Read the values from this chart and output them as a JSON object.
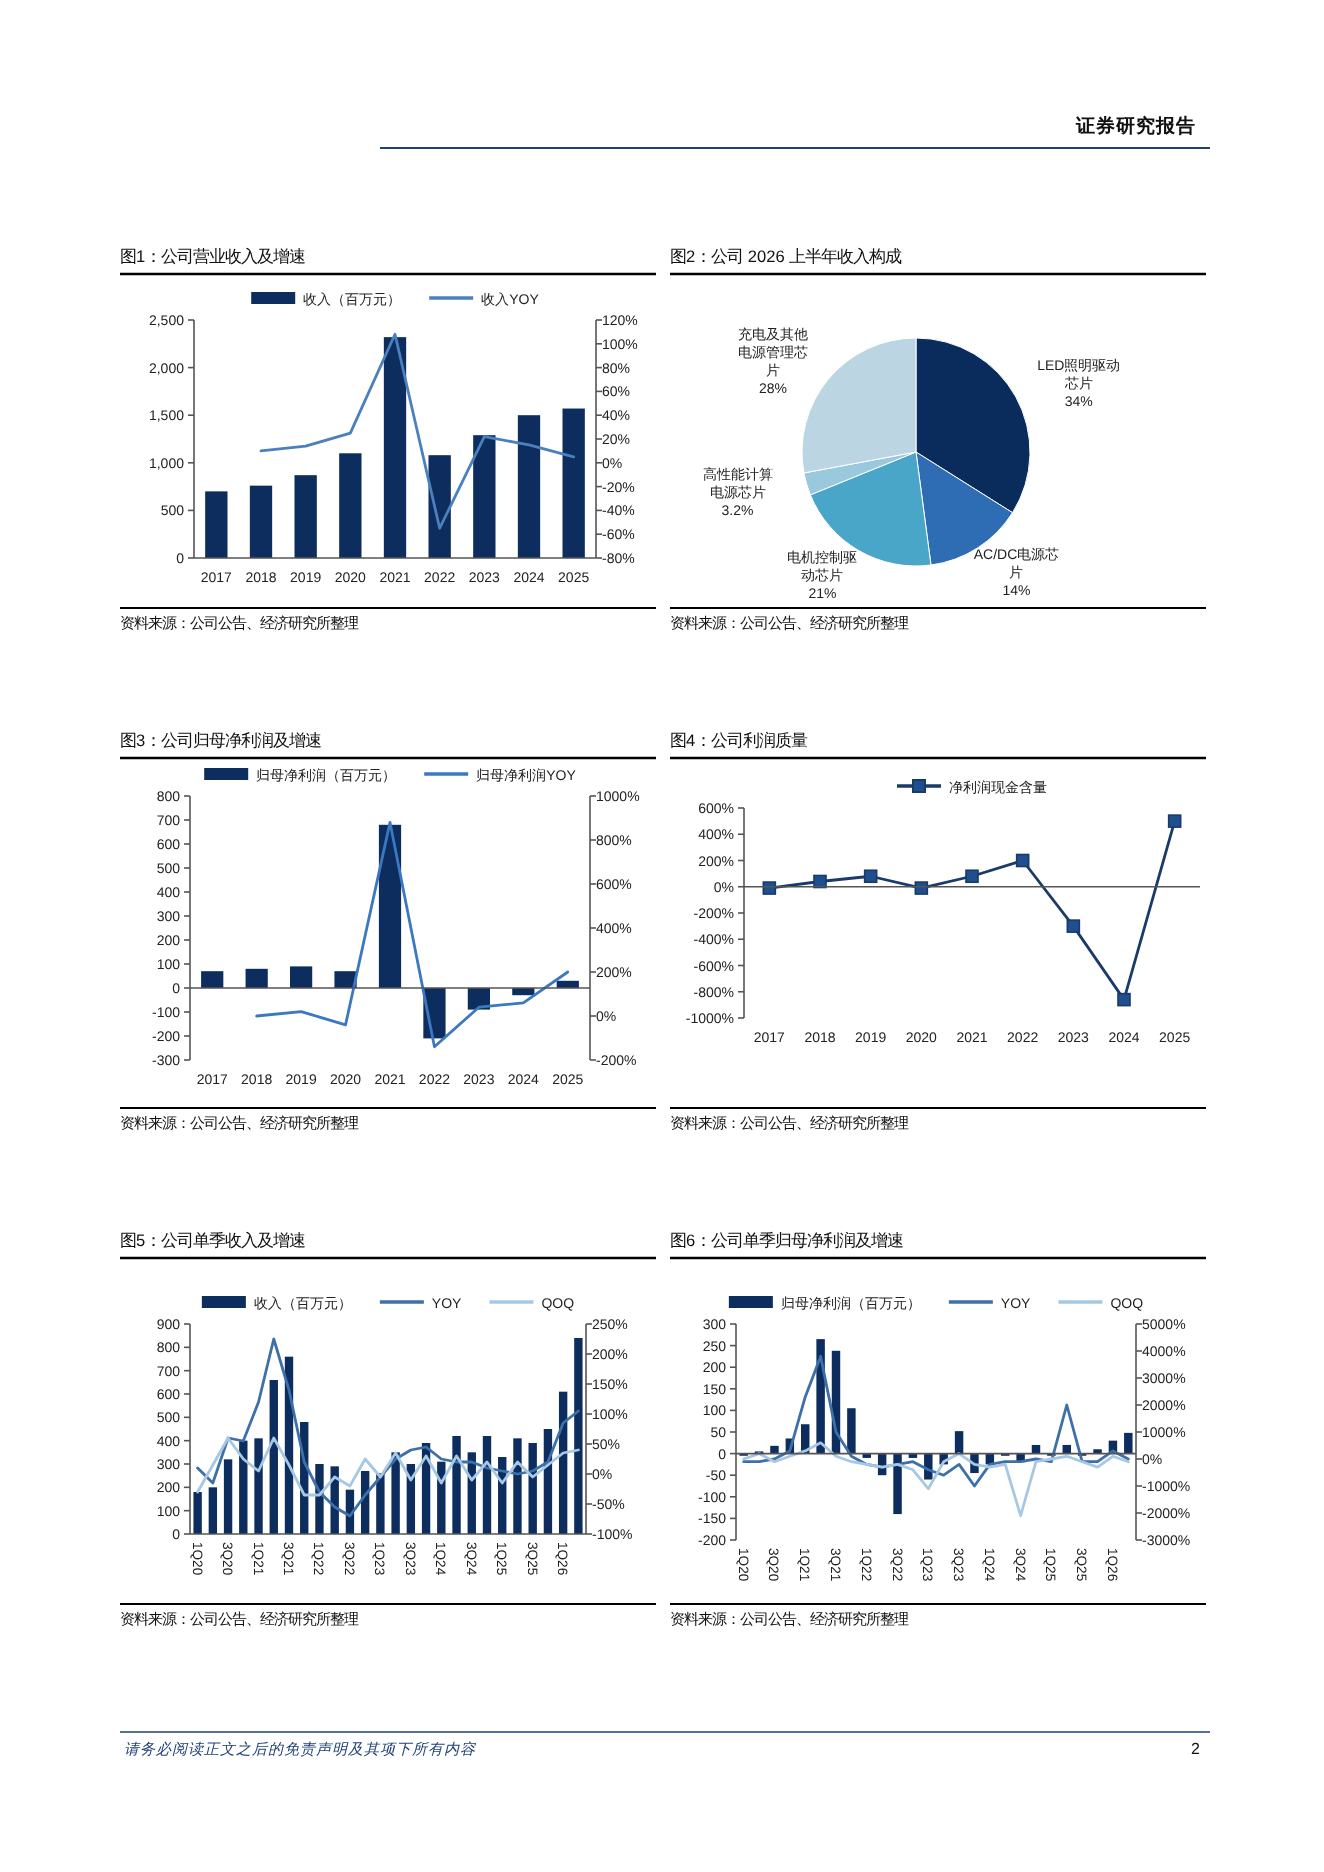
{
  "chart_data": [
    {
      "type": "other",
      "annotations": [
        "证券研究报告",
        "请务必阅读正文之后的免责声明及其项下所有内容",
        "2"
      ]
    },
    {
      "type": "bar",
      "title": "图1：公司营业收入及增速",
      "categories": [
        "2017",
        "2018",
        "2019",
        "2020",
        "2021",
        "2022",
        "2023",
        "2024",
        "2025"
      ],
      "series": [
        {
          "name": "收入（百万元）",
          "type": "bar",
          "color": "#0c2d5e",
          "values": [
            700,
            760,
            870,
            1100,
            2320,
            1080,
            1290,
            1500,
            1570
          ]
        },
        {
          "name": "收入YOY",
          "type": "line",
          "axis": "y2",
          "color": "#4a80bd",
          "values": [
            null,
            10,
            14,
            25,
            108,
            -55,
            22,
            15,
            5
          ]
        }
      ],
      "ylim": [
        0,
        2500
      ],
      "yticks": [
        0,
        500,
        {
          "value": 1000,
          "label": "1,000"
        },
        {
          "value": 1500,
          "label": "1,500"
        },
        {
          "value": 2000,
          "label": "2,000"
        },
        {
          "value": 2500,
          "label": "2,500"
        }
      ],
      "y2lim": [
        -80,
        120
      ],
      "y2ticks": [
        {
          "value": -80,
          "label": "-80%"
        },
        {
          "value": -60,
          "label": "-60%"
        },
        {
          "value": -40,
          "label": "-40%"
        },
        {
          "value": -20,
          "label": "-20%"
        },
        {
          "value": 0,
          "label": "0%"
        },
        {
          "value": 20,
          "label": "20%"
        },
        {
          "value": 40,
          "label": "40%"
        },
        {
          "value": 60,
          "label": "60%"
        },
        {
          "value": 80,
          "label": "80%"
        },
        {
          "value": 100,
          "label": "100%"
        },
        {
          "value": 120,
          "label": "120%"
        }
      ],
      "legend": "top",
      "annotations": [
        "资料来源：公司公告、经济研究所整理"
      ]
    },
    {
      "type": "pie",
      "title": "图2：公司 2026 上半年收入构成",
      "categories": [
        "LED照明驱动芯片",
        "AC/DC电源芯片",
        "电机控制驱动芯片",
        "高性能计算电源芯片",
        "充电及其他电源管理芯片"
      ],
      "values": [
        34,
        14,
        21,
        3.2,
        28
      ],
      "colors": [
        "#0a2c5c",
        "#2e6db4",
        "#4aa6c9",
        "#9ac8dc",
        "#bcd5e3"
      ],
      "value_labels": [
        "34%",
        "14%",
        "21%",
        "3.2%",
        "28%"
      ],
      "annotations": [
        "资料来源：公司公告、经济研究所整理"
      ]
    },
    {
      "type": "bar",
      "title": "图3：公司归母净利润及增速",
      "categories": [
        "2017",
        "2018",
        "2019",
        "2020",
        "2021",
        "2022",
        "2023",
        "2024",
        "2025"
      ],
      "series": [
        {
          "name": "归母净利润（百万元）",
          "type": "bar",
          "color": "#0c2d5e",
          "values": [
            70,
            80,
            90,
            70,
            680,
            -210,
            -90,
            -30,
            30
          ]
        },
        {
          "name": "归母净利润YOY",
          "type": "line",
          "axis": "y2",
          "color": "#3c78c0",
          "values": [
            null,
            0,
            20,
            -40,
            880,
            -140,
            40,
            60,
            200
          ]
        }
      ],
      "ylim": [
        -300,
        800
      ],
      "yticks": [
        -300,
        -200,
        -100,
        0,
        100,
        200,
        300,
        400,
        500,
        600,
        700,
        800
      ],
      "y2lim": [
        -200,
        1000
      ],
      "y2ticks": [
        {
          "value": -200,
          "label": "-200%"
        },
        {
          "value": 0,
          "label": "0%"
        },
        {
          "value": 200,
          "label": "200%"
        },
        {
          "value": 400,
          "label": "400%"
        },
        {
          "value": 600,
          "label": "600%"
        },
        {
          "value": 800,
          "label": "800%"
        },
        {
          "value": 1000,
          "label": "1000%"
        }
      ],
      "legend": "top",
      "annotations": [
        "资料来源：公司公告、经济研究所整理"
      ]
    },
    {
      "type": "line",
      "title": "图4：公司利润质量",
      "categories": [
        "2017",
        "2018",
        "2019",
        "2020",
        "2021",
        "2022",
        "2023",
        "2024",
        "2025"
      ],
      "series": [
        {
          "name": "净利润现金含量",
          "color": "#1a3a6b",
          "values": [
            -10,
            40,
            80,
            -10,
            80,
            200,
            -300,
            -860,
            500
          ]
        }
      ],
      "ylim": [
        -1000,
        600
      ],
      "yticks": [
        {
          "value": -1000,
          "label": "-1000%"
        },
        {
          "value": -800,
          "label": "-800%"
        },
        {
          "value": -600,
          "label": "-600%"
        },
        {
          "value": -400,
          "label": "-400%"
        },
        {
          "value": -200,
          "label": "-200%"
        },
        {
          "value": 0,
          "label": "0%"
        },
        {
          "value": 200,
          "label": "200%"
        },
        {
          "value": 400,
          "label": "400%"
        },
        {
          "value": 600,
          "label": "600%"
        }
      ],
      "marker": "square",
      "legend": "top",
      "annotations": [
        "资料来源：公司公告、经济研究所整理"
      ]
    },
    {
      "type": "bar",
      "title": "图5：公司单季收入及增速",
      "categories": [
        "1Q20",
        null,
        "3Q20",
        null,
        "1Q21",
        null,
        "3Q21",
        null,
        "1Q22",
        null,
        "3Q22",
        null,
        "1Q23",
        null,
        "3Q23",
        null,
        "1Q24",
        null,
        "3Q24",
        null,
        "1Q25",
        null,
        "3Q25",
        null,
        "1Q26",
        null
      ],
      "series": [
        {
          "name": "收入（百万元）",
          "type": "bar",
          "color": "#0c2d5e",
          "values": [
            180,
            200,
            320,
            400,
            410,
            660,
            760,
            480,
            300,
            290,
            190,
            270,
            260,
            350,
            300,
            390,
            310,
            420,
            350,
            420,
            330,
            410,
            390,
            450,
            610,
            840
          ]
        },
        {
          "name": "YOY",
          "type": "line",
          "axis": "y2",
          "color": "#3d6fa8",
          "values": [
            10,
            -15,
            60,
            55,
            120,
            225,
            140,
            20,
            -30,
            -55,
            -70,
            -35,
            -5,
            25,
            40,
            45,
            25,
            20,
            20,
            10,
            5,
            0,
            5,
            20,
            85,
            105
          ]
        },
        {
          "name": "QOQ",
          "type": "line",
          "axis": "y2",
          "color": "#a6c8e4",
          "values": [
            -30,
            15,
            60,
            25,
            5,
            60,
            15,
            -35,
            -35,
            -5,
            -20,
            25,
            -5,
            35,
            -10,
            30,
            -15,
            30,
            -10,
            20,
            -15,
            20,
            -5,
            15,
            35,
            40
          ]
        }
      ],
      "ylim": [
        0,
        900
      ],
      "yticks": [
        0,
        100,
        200,
        300,
        400,
        500,
        600,
        700,
        800,
        900
      ],
      "y2lim": [
        -100,
        250
      ],
      "y2ticks": [
        {
          "value": -100,
          "label": "-100%"
        },
        {
          "value": -50,
          "label": "-50%"
        },
        {
          "value": 0,
          "label": "0%"
        },
        {
          "value": 50,
          "label": "50%"
        },
        {
          "value": 100,
          "label": "100%"
        },
        {
          "value": 150,
          "label": "150%"
        },
        {
          "value": 200,
          "label": "200%"
        },
        {
          "value": 250,
          "label": "250%"
        }
      ],
      "legend": "top",
      "annotations": [
        "资料来源：公司公告、经济研究所整理"
      ]
    },
    {
      "type": "bar",
      "title": "图6：公司单季归母净利润及增速",
      "categories": [
        "1Q20",
        null,
        "3Q20",
        null,
        "1Q21",
        null,
        "3Q21",
        null,
        "1Q22",
        null,
        "3Q22",
        null,
        "1Q23",
        null,
        "3Q23",
        null,
        "1Q24",
        null,
        "3Q24",
        null,
        "1Q25",
        null,
        "3Q25",
        null,
        "1Q26",
        null
      ],
      "series": [
        {
          "name": "归母净利润（百万元）",
          "type": "bar",
          "color": "#0c2d5e",
          "values": [
            -5,
            5,
            18,
            35,
            68,
            265,
            238,
            105,
            -10,
            -50,
            -140,
            -10,
            -60,
            -25,
            52,
            -45,
            -25,
            -5,
            -20,
            20,
            -5,
            20,
            -5,
            10,
            30,
            48
          ]
        },
        {
          "name": "YOY",
          "type": "line",
          "axis": "y2",
          "color": "#3d6fa8",
          "values": [
            -100,
            -100,
            0,
            300,
            2300,
            3800,
            1000,
            100,
            -200,
            -300,
            -200,
            -100,
            -400,
            -600,
            -200,
            -1000,
            -200,
            -100,
            -100,
            0,
            -100,
            2000,
            -100,
            -100,
            300,
            0
          ]
        },
        {
          "name": "QOQ",
          "type": "line",
          "axis": "y2",
          "color": "#a6c8e4",
          "values": [
            0,
            200,
            -100,
            100,
            300,
            600,
            100,
            -100,
            -200,
            -300,
            -200,
            -400,
            -1100,
            -100,
            200,
            -200,
            -300,
            -200,
            -2100,
            -100,
            0,
            100,
            -100,
            -300,
            100,
            -100
          ]
        }
      ],
      "ylim": [
        -200,
        300
      ],
      "yticks": [
        -200,
        -150,
        -100,
        -50,
        0,
        50,
        100,
        150,
        200,
        250,
        300
      ],
      "y2lim": [
        -3000,
        5000
      ],
      "y2ticks": [
        {
          "value": -3000,
          "label": "-3000%"
        },
        {
          "value": -2000,
          "label": "-2000%"
        },
        {
          "value": -1000,
          "label": "-1000%"
        },
        {
          "value": 0,
          "label": "0%"
        },
        {
          "value": 1000,
          "label": "1000%"
        },
        {
          "value": 2000,
          "label": "2000%"
        },
        {
          "value": 3000,
          "label": "3000%"
        },
        {
          "value": 4000,
          "label": "4000%"
        },
        {
          "value": 5000,
          "label": "5000%"
        }
      ],
      "legend": "top",
      "annotations": [
        "资料来源：公司公告、经济研究所整理"
      ]
    }
  ]
}
